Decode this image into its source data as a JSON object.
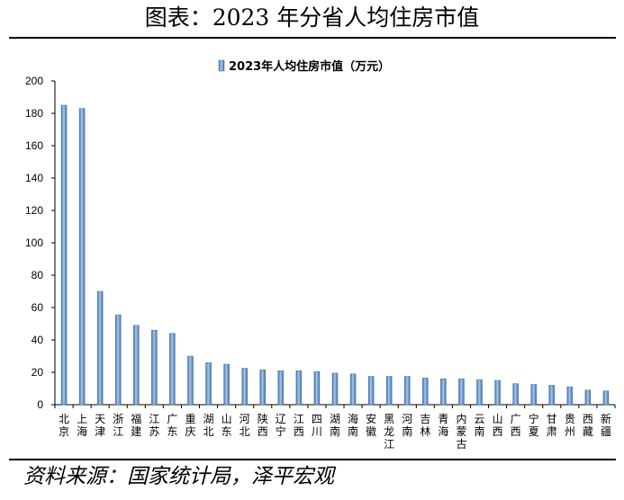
{
  "figure": {
    "title": "图表：2023 年分省人均住房市值",
    "source": "资料来源：国家统计局，泽平宏观"
  },
  "chart_data": {
    "type": "bar",
    "legend": {
      "label": "2023年人均住房市值（万元）",
      "placement": "top-center"
    },
    "ylim": [
      0,
      200
    ],
    "yticks": [
      0,
      20,
      40,
      60,
      80,
      100,
      120,
      140,
      160,
      180,
      200
    ],
    "grid": false,
    "bar_color": "#5b8fc7",
    "categories": [
      "北京",
      "上海",
      "天津",
      "浙江",
      "福建",
      "江苏",
      "广东",
      "重庆",
      "湖北",
      "山东",
      "河北",
      "陕西",
      "辽宁",
      "江西",
      "四川",
      "湖南",
      "海南",
      "安徽",
      "黑龙江",
      "河南",
      "吉林",
      "青海",
      "内蒙古",
      "云南",
      "山西",
      "广西",
      "宁夏",
      "甘肃",
      "贵州",
      "西藏",
      "新疆"
    ],
    "values": [
      185,
      183,
      70,
      55.5,
      49,
      46,
      44,
      30,
      26,
      25,
      22.5,
      21.5,
      21,
      21,
      20.5,
      19.5,
      19,
      17.5,
      17.5,
      17.5,
      16.5,
      16,
      16,
      15.5,
      15,
      13,
      12.5,
      12,
      11,
      9,
      8.5
    ]
  }
}
